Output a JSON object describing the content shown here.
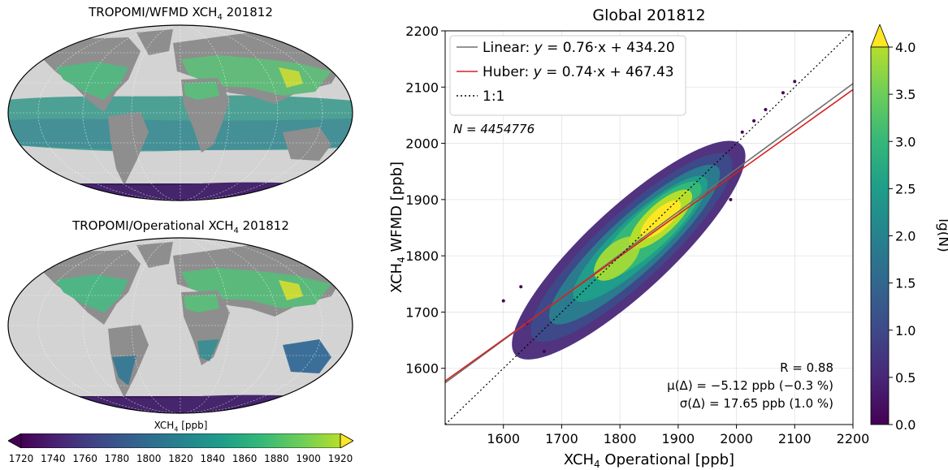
{
  "maps": {
    "top_title": {
      "pre": "TROPOMI/WFMD XCH",
      "sub": "4",
      "post": " 201812"
    },
    "bottom_title": {
      "pre": "TROPOMI/Operational XCH",
      "sub": "4",
      "post": " 201812"
    },
    "colorbar": {
      "label_pre": "XCH",
      "label_sub": "4",
      "label_post": " [ppb]",
      "ticks": [
        "1720",
        "1740",
        "1760",
        "1780",
        "1800",
        "1820",
        "1840",
        "1860",
        "1880",
        "1900",
        "1920"
      ]
    }
  },
  "chart_data": {
    "type": "scatter",
    "title": "Global 201812",
    "xlabel": {
      "pre": "XCH",
      "sub": "4",
      "post": " Operational [ppb]"
    },
    "ylabel": {
      "pre": "XCH",
      "sub": "4",
      "post": " WFMD [ppb]"
    },
    "xlim": [
      1500,
      2200
    ],
    "ylim": [
      1500,
      2200
    ],
    "xticks": [
      1600,
      1700,
      1800,
      1900,
      2000,
      2100,
      2200
    ],
    "yticks": [
      1600,
      1700,
      1800,
      1900,
      2000,
      2100,
      2200
    ],
    "grid": true,
    "legend_position": "top-left",
    "fits": [
      {
        "name": "Linear",
        "label_rest": " = 0.76·x + 434.20",
        "slope": 0.76,
        "intercept": 434.2,
        "color": "#707070"
      },
      {
        "name": "Huber",
        "label_rest": " = 0.74·x + 467.43",
        "slope": 0.74,
        "intercept": 467.43,
        "color": "#d62020"
      },
      {
        "name": "1:1",
        "slope": 1.0,
        "intercept": 0.0,
        "color": "#000000",
        "dashed": true
      }
    ],
    "n_text": "N = 4454776",
    "stats": [
      "R = 0.88",
      "μ(Δ) = −5.12 ppb (−0.3 %)",
      "σ(Δ) = 17.65 ppb (1.0 %)"
    ],
    "colorbar": {
      "label": "lg(N)",
      "min": 0.0,
      "max": 4.0,
      "ticks": [
        "0.0",
        "0.5",
        "1.0",
        "1.5",
        "2.0",
        "2.5",
        "3.0",
        "3.5",
        "4.0"
      ]
    }
  }
}
